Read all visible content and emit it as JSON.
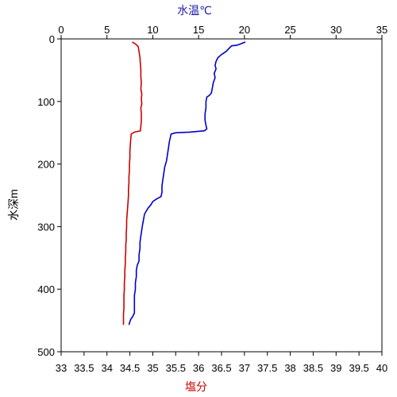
{
  "chart_data": {
    "type": "line",
    "y_axis": {
      "label": "水深m",
      "range": [
        0,
        500
      ],
      "inverted": true,
      "ticks": [
        0,
        100,
        200,
        300,
        400,
        500
      ]
    },
    "x_axis_top": {
      "label": "水温℃",
      "label_color": "#1a1aa8",
      "range": [
        0,
        35
      ],
      "ticks": [
        0,
        5,
        10,
        15,
        20,
        25,
        30,
        35
      ]
    },
    "x_axis_bottom": {
      "label": "塩分",
      "label_color": "#cc0000",
      "range": [
        33,
        40
      ],
      "ticks": [
        "33",
        "33.5",
        "34",
        "34.5",
        "35",
        "35.5",
        "36",
        "36.5",
        "37",
        "37.5",
        "38",
        "38.5",
        "39",
        "39.5",
        "40"
      ]
    },
    "grid": false,
    "series": [
      {
        "axis": "top",
        "color": "#0000cc",
        "points": [
          {
            "x": 20.1,
            "y": 5
          },
          {
            "x": 19.6,
            "y": 8
          },
          {
            "x": 19.2,
            "y": 10
          },
          {
            "x": 18.6,
            "y": 11
          },
          {
            "x": 18.4,
            "y": 14
          },
          {
            "x": 18.0,
            "y": 20
          },
          {
            "x": 17.5,
            "y": 25
          },
          {
            "x": 17.1,
            "y": 30
          },
          {
            "x": 16.9,
            "y": 36
          },
          {
            "x": 16.8,
            "y": 42
          },
          {
            "x": 16.9,
            "y": 48
          },
          {
            "x": 16.7,
            "y": 55
          },
          {
            "x": 16.8,
            "y": 62
          },
          {
            "x": 16.6,
            "y": 70
          },
          {
            "x": 16.5,
            "y": 78
          },
          {
            "x": 16.4,
            "y": 86
          },
          {
            "x": 16.2,
            "y": 90
          },
          {
            "x": 15.9,
            "y": 93
          },
          {
            "x": 15.8,
            "y": 100
          },
          {
            "x": 15.8,
            "y": 110
          },
          {
            "x": 15.7,
            "y": 120
          },
          {
            "x": 15.7,
            "y": 130
          },
          {
            "x": 15.8,
            "y": 138
          },
          {
            "x": 15.9,
            "y": 144
          },
          {
            "x": 15.6,
            "y": 147
          },
          {
            "x": 14.0,
            "y": 149
          },
          {
            "x": 12.5,
            "y": 150
          },
          {
            "x": 12.0,
            "y": 152
          },
          {
            "x": 11.9,
            "y": 158
          },
          {
            "x": 11.8,
            "y": 165
          },
          {
            "x": 11.7,
            "y": 175
          },
          {
            "x": 11.6,
            "y": 185
          },
          {
            "x": 11.5,
            "y": 195
          },
          {
            "x": 11.3,
            "y": 205
          },
          {
            "x": 11.2,
            "y": 215
          },
          {
            "x": 11.1,
            "y": 225
          },
          {
            "x": 11.0,
            "y": 235
          },
          {
            "x": 11.0,
            "y": 245
          },
          {
            "x": 10.9,
            "y": 252
          },
          {
            "x": 10.4,
            "y": 256
          },
          {
            "x": 10.0,
            "y": 260
          },
          {
            "x": 9.8,
            "y": 265
          },
          {
            "x": 9.5,
            "y": 270
          },
          {
            "x": 9.3,
            "y": 275
          },
          {
            "x": 9.1,
            "y": 280
          },
          {
            "x": 9.0,
            "y": 288
          },
          {
            "x": 8.9,
            "y": 296
          },
          {
            "x": 8.8,
            "y": 305
          },
          {
            "x": 8.7,
            "y": 315
          },
          {
            "x": 8.6,
            "y": 325
          },
          {
            "x": 8.6,
            "y": 335
          },
          {
            "x": 8.5,
            "y": 345
          },
          {
            "x": 8.5,
            "y": 355
          },
          {
            "x": 8.3,
            "y": 362
          },
          {
            "x": 8.2,
            "y": 370
          },
          {
            "x": 8.2,
            "y": 380
          },
          {
            "x": 8.1,
            "y": 390
          },
          {
            "x": 8.1,
            "y": 400
          },
          {
            "x": 8.0,
            "y": 410
          },
          {
            "x": 8.0,
            "y": 420
          },
          {
            "x": 8.0,
            "y": 430
          },
          {
            "x": 8.0,
            "y": 438
          },
          {
            "x": 7.8,
            "y": 444
          },
          {
            "x": 7.6,
            "y": 448
          },
          {
            "x": 7.5,
            "y": 452
          },
          {
            "x": 7.4,
            "y": 457
          }
        ]
      },
      {
        "axis": "bottom",
        "color": "#cc0000",
        "points": [
          {
            "x": 34.55,
            "y": 5
          },
          {
            "x": 34.62,
            "y": 8
          },
          {
            "x": 34.68,
            "y": 12
          },
          {
            "x": 34.7,
            "y": 20
          },
          {
            "x": 34.72,
            "y": 30
          },
          {
            "x": 34.73,
            "y": 40
          },
          {
            "x": 34.74,
            "y": 50
          },
          {
            "x": 34.74,
            "y": 60
          },
          {
            "x": 34.75,
            "y": 70
          },
          {
            "x": 34.74,
            "y": 80
          },
          {
            "x": 34.76,
            "y": 88
          },
          {
            "x": 34.75,
            "y": 95
          },
          {
            "x": 34.76,
            "y": 104
          },
          {
            "x": 34.74,
            "y": 110
          },
          {
            "x": 34.75,
            "y": 120
          },
          {
            "x": 34.75,
            "y": 130
          },
          {
            "x": 34.74,
            "y": 140
          },
          {
            "x": 34.73,
            "y": 147
          },
          {
            "x": 34.6,
            "y": 149
          },
          {
            "x": 34.53,
            "y": 152
          },
          {
            "x": 34.52,
            "y": 160
          },
          {
            "x": 34.51,
            "y": 170
          },
          {
            "x": 34.5,
            "y": 180
          },
          {
            "x": 34.5,
            "y": 190
          },
          {
            "x": 34.49,
            "y": 200
          },
          {
            "x": 34.49,
            "y": 210
          },
          {
            "x": 34.48,
            "y": 220
          },
          {
            "x": 34.48,
            "y": 230
          },
          {
            "x": 34.47,
            "y": 240
          },
          {
            "x": 34.47,
            "y": 250
          },
          {
            "x": 34.46,
            "y": 260
          },
          {
            "x": 34.45,
            "y": 270
          },
          {
            "x": 34.44,
            "y": 280
          },
          {
            "x": 34.43,
            "y": 290
          },
          {
            "x": 34.43,
            "y": 300
          },
          {
            "x": 34.42,
            "y": 310
          },
          {
            "x": 34.42,
            "y": 320
          },
          {
            "x": 34.41,
            "y": 330
          },
          {
            "x": 34.41,
            "y": 340
          },
          {
            "x": 34.4,
            "y": 350
          },
          {
            "x": 34.4,
            "y": 360
          },
          {
            "x": 34.39,
            "y": 370
          },
          {
            "x": 34.39,
            "y": 380
          },
          {
            "x": 34.38,
            "y": 390
          },
          {
            "x": 34.38,
            "y": 400
          },
          {
            "x": 34.37,
            "y": 410
          },
          {
            "x": 34.37,
            "y": 420
          },
          {
            "x": 34.37,
            "y": 430
          },
          {
            "x": 34.36,
            "y": 440
          },
          {
            "x": 34.36,
            "y": 450
          },
          {
            "x": 34.36,
            "y": 457
          }
        ]
      }
    ]
  }
}
